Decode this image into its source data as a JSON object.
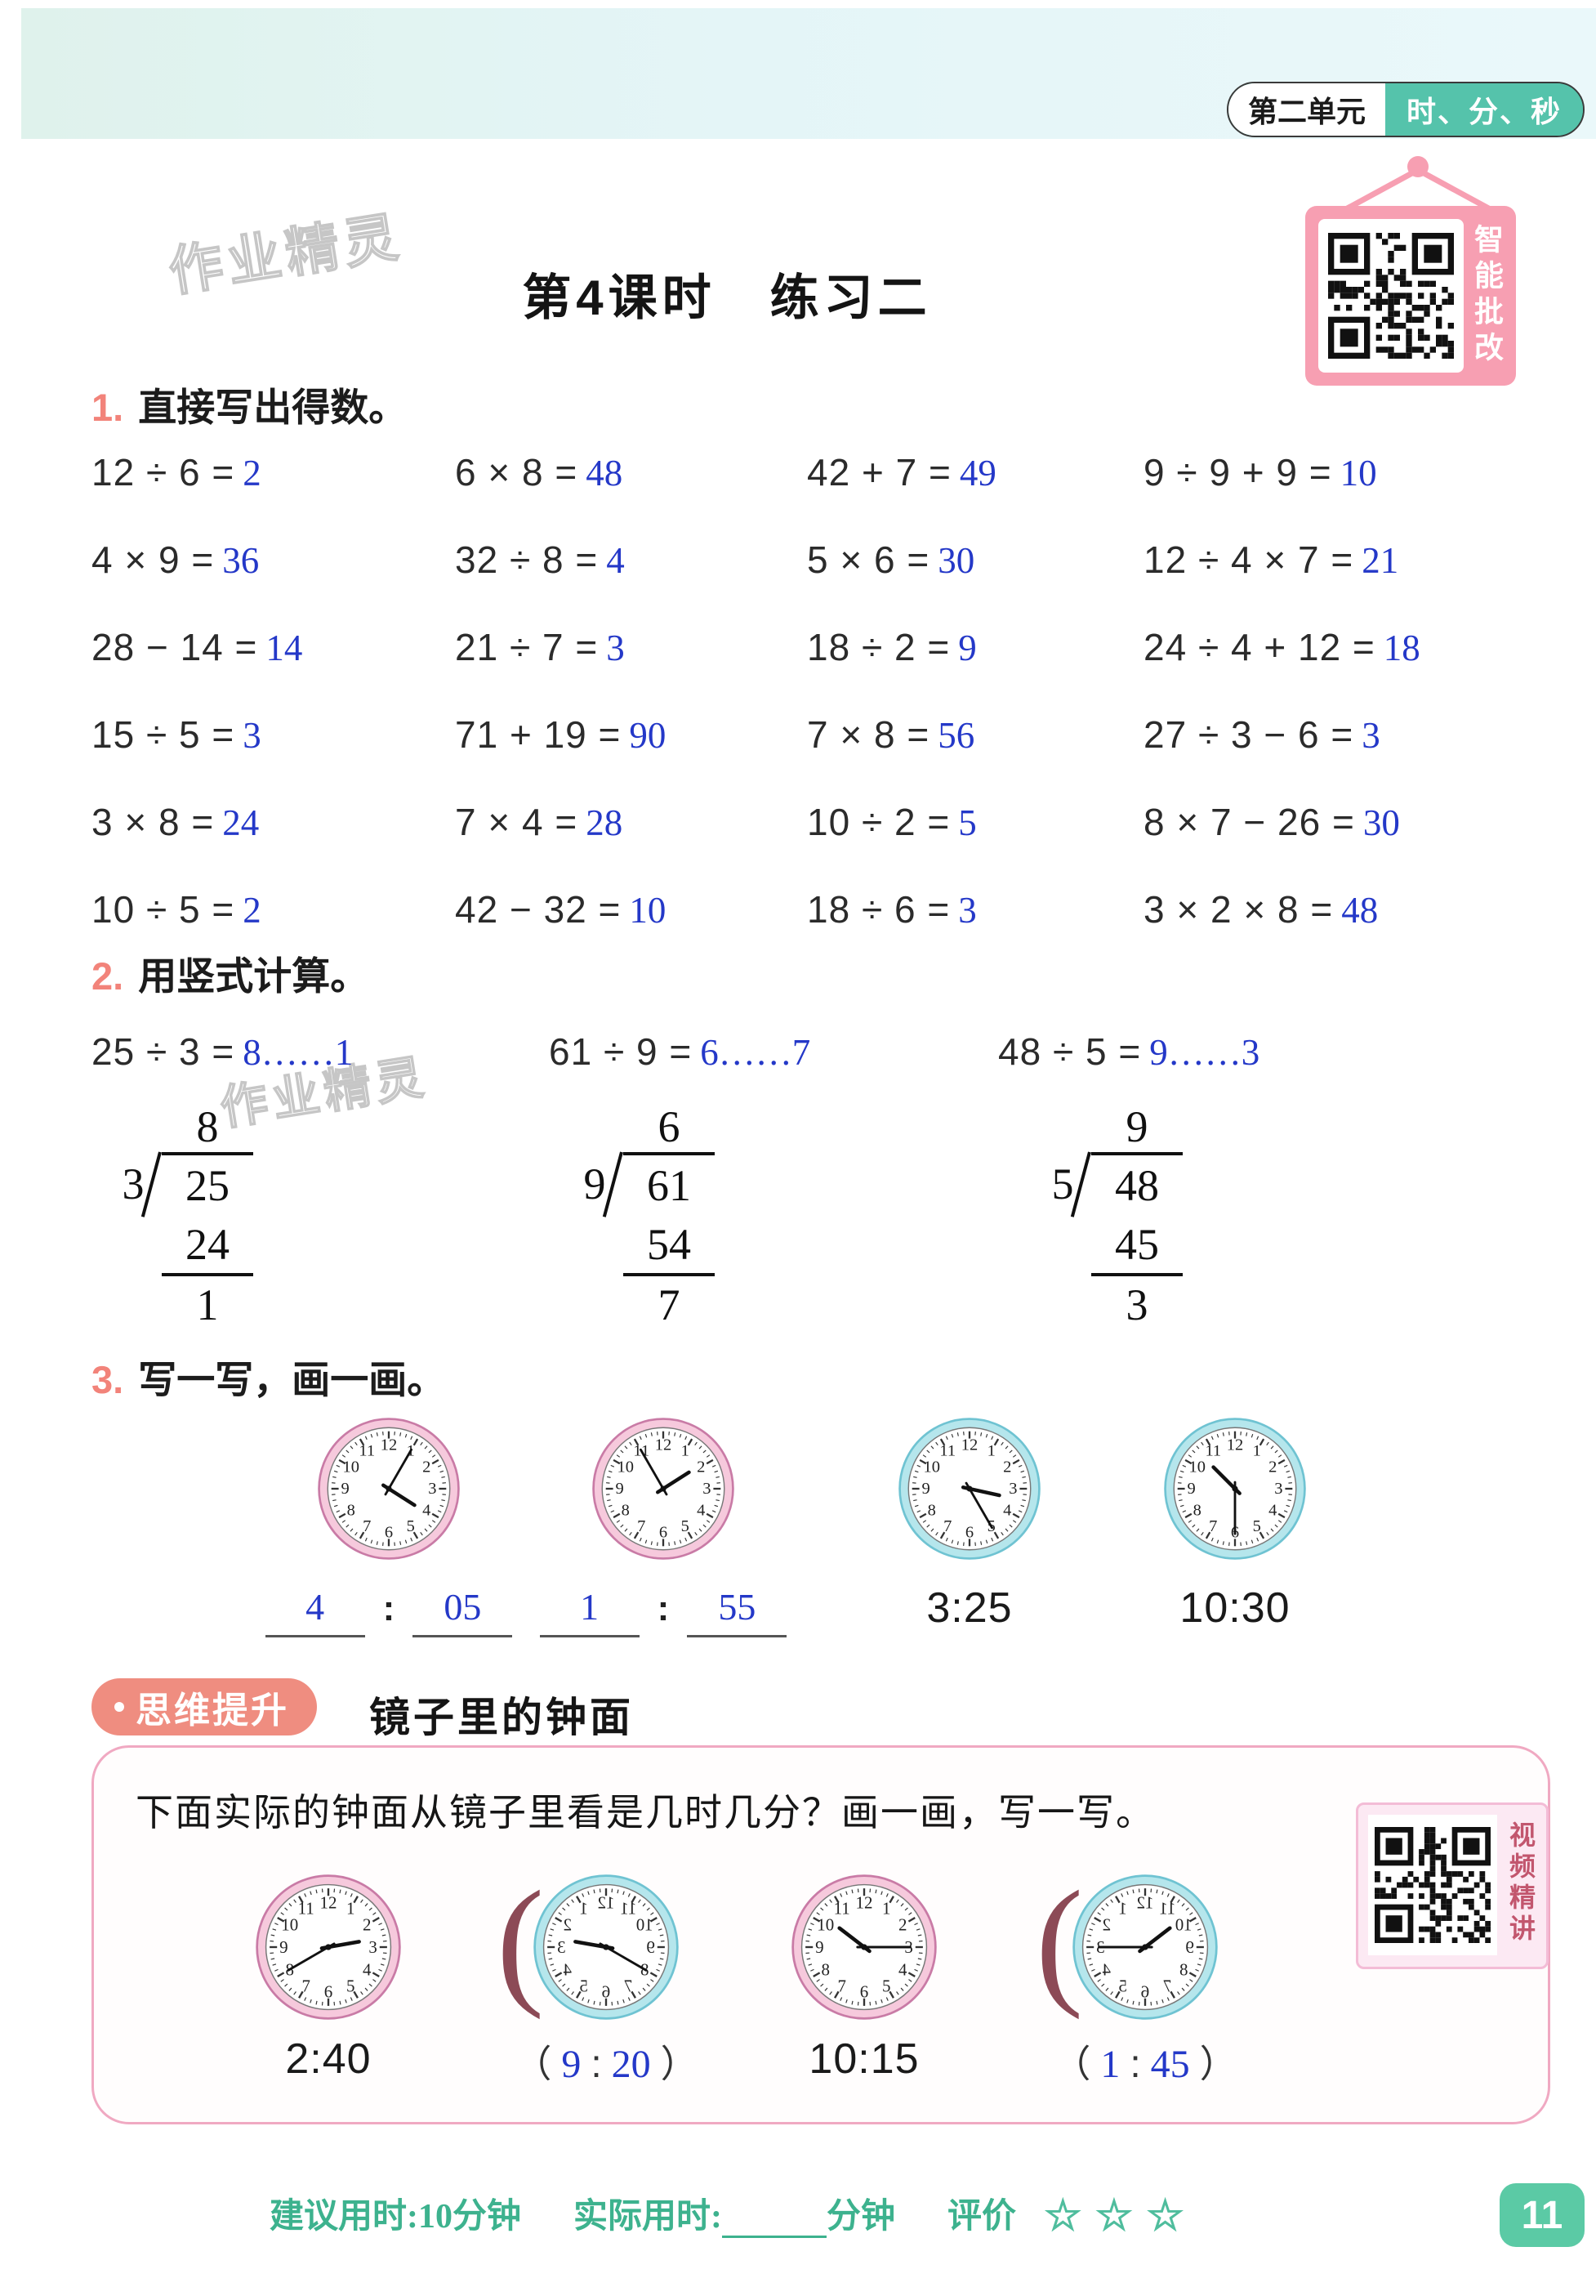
{
  "header": {
    "unit_label": "第二单元",
    "unit_title": "时、分、秒",
    "qr_caption": "智能批改"
  },
  "title": "第4课时　练习二",
  "watermark": "作业精灵",
  "colors": {
    "teal_accent": "#55c3ab",
    "salmon_accent": "#ef8d80",
    "pink_sign": "#f79fb2",
    "answer_blue": "#2438c8",
    "footer_teal": "#3db28e",
    "page_badge_green": "#5bcaa5",
    "clock_rim_pink": "#f6c9dc",
    "clock_rim_cyan": "#b5e6ec"
  },
  "sections": {
    "one": {
      "num": "1.",
      "heading": "直接写出得数。",
      "rows": [
        [
          [
            "12 ÷ 6 =",
            "2"
          ],
          [
            "6 × 8 =",
            "48"
          ],
          [
            "42 + 7 =",
            "49"
          ],
          [
            "9 ÷ 9 + 9 =",
            "10"
          ]
        ],
        [
          [
            "4 × 9 =",
            "36"
          ],
          [
            "32 ÷ 8 =",
            "4"
          ],
          [
            "5 × 6 =",
            "30"
          ],
          [
            "12 ÷ 4 × 7 =",
            "21"
          ]
        ],
        [
          [
            "28 − 14 =",
            "14"
          ],
          [
            "21 ÷ 7 =",
            "3"
          ],
          [
            "18 ÷ 2 =",
            "9"
          ],
          [
            "24 ÷ 4 + 12 =",
            "18"
          ]
        ],
        [
          [
            "15 ÷ 5 =",
            "3"
          ],
          [
            "71 + 19 =",
            "90"
          ],
          [
            "7 × 8 =",
            "56"
          ],
          [
            "27 ÷ 3 − 6 =",
            "3"
          ]
        ],
        [
          [
            "3 × 8 =",
            "24"
          ],
          [
            "7 × 4 =",
            "28"
          ],
          [
            "10 ÷ 2 =",
            "5"
          ],
          [
            "8 × 7 − 26 =",
            "30"
          ]
        ],
        [
          [
            "10 ÷ 5 =",
            "2"
          ],
          [
            "42 − 32 =",
            "10"
          ],
          [
            "18 ÷ 6 =",
            "3"
          ],
          [
            "3 × 2 × 8 =",
            "48"
          ]
        ]
      ]
    },
    "two": {
      "num": "2.",
      "heading": "用竖式计算。",
      "problems": [
        {
          "expr": "25 ÷ 3 =",
          "ans": "8……1"
        },
        {
          "expr": "61 ÷ 9 =",
          "ans": "6……7"
        },
        {
          "expr": "48 ÷ 5 =",
          "ans": "9……3"
        }
      ],
      "longdiv": [
        {
          "quotient": "8",
          "divisor": "3",
          "dividend": "25",
          "product": "24",
          "remainder": "1"
        },
        {
          "quotient": "6",
          "divisor": "9",
          "dividend": "61",
          "product": "54",
          "remainder": "7"
        },
        {
          "quotient": "9",
          "divisor": "5",
          "dividend": "48",
          "product": "45",
          "remainder": "3"
        }
      ]
    },
    "three": {
      "num": "3.",
      "heading": "写一写，画一画。",
      "clocks": [
        {
          "rim": "pink",
          "time": "4:05",
          "mode": "blanks",
          "hour_answer": "4",
          "minute_answer": "05"
        },
        {
          "rim": "pink",
          "time": "1:55",
          "mode": "blanks",
          "hour_answer": "1",
          "minute_answer": "55"
        },
        {
          "rim": "cyan",
          "time": "3:25",
          "mode": "label",
          "label": "3:25"
        },
        {
          "rim": "cyan",
          "time": "10:30",
          "mode": "label",
          "label": "10:30"
        }
      ]
    }
  },
  "mirror": {
    "badge": "思维提升",
    "heading": "镜子里的钟面",
    "question": "下面实际的钟面从镜子里看是几时几分？画一画，写一写。",
    "qr_caption": "视频精讲",
    "clocks": [
      {
        "rim": "pink",
        "time": "2:40",
        "mode": "label",
        "label": "2:40"
      },
      {
        "rim": "cyan",
        "time": "2:40",
        "mirrored": true,
        "mode": "paren",
        "hour_answer": "9",
        "minute_answer": "20"
      },
      {
        "rim": "pink",
        "time": "10:15",
        "mode": "label",
        "label": "10:15"
      },
      {
        "rim": "cyan",
        "time": "10:15",
        "mirrored": true,
        "mode": "paren",
        "hour_answer": "1",
        "minute_answer": "45"
      }
    ]
  },
  "footer": {
    "suggested": "建议用时:10分钟",
    "actual_label": "实际用时:",
    "actual_unit": "分钟",
    "rating_label": "评价",
    "stars": 3,
    "page": "11"
  }
}
